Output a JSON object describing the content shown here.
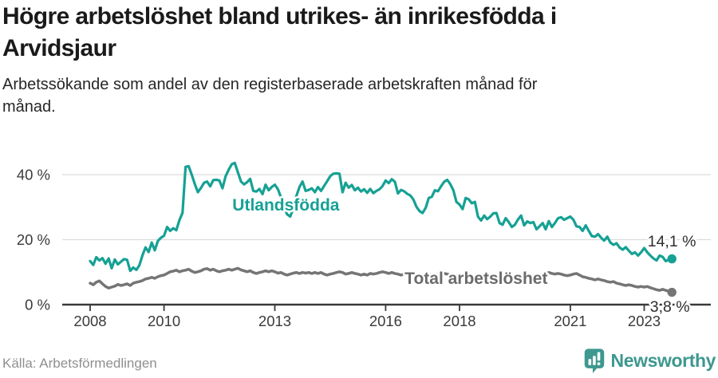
{
  "header": {
    "title_line1": "Högre arbetslöshet bland utrikes- än inrikesfödda i",
    "title_line2": "Arvidsjaur",
    "subtitle_line1": "Arbetssökande som andel av den registerbaserade arbetskraften månad för",
    "subtitle_line2": "månad."
  },
  "footer": {
    "source": "Källa: Arbetsförmedlingen",
    "brand": "Newsworthy"
  },
  "colors": {
    "accent_teal": "#16a194",
    "series_gray": "#757575",
    "axis_text": "#3a3a3a",
    "gridline": "#dcdcdc",
    "end_label_text": "#2d2d2d",
    "logo_teal": "#3d988f"
  },
  "chart_data": {
    "type": "line",
    "title": "Högre arbetslöshet bland utrikes- än inrikesfödda i Arvidsjaur",
    "subtitle": "Arbetssökande som andel av den registerbaserade arbetskraften månad för månad.",
    "x_unit": "year-month",
    "x_start_year": 2008.0,
    "x_step_years": 0.083333,
    "x_axis_tick_years": [
      2008,
      2010,
      2013,
      2016,
      2018,
      2021,
      2023
    ],
    "x_axis_tick_labels": [
      "2008",
      "2010",
      "2013",
      "2016",
      "2018",
      "2021",
      "2023"
    ],
    "y_axis_ticks": [
      {
        "value": 0,
        "label": "0 %"
      },
      {
        "value": 20,
        "label": "20 %"
      },
      {
        "value": 40,
        "label": "40 %"
      }
    ],
    "ylim": [
      0,
      46
    ],
    "xlim": [
      2007.8,
      2024.0
    ],
    "grid": "horizontal",
    "legend_position": "inline-labels-on-lines",
    "series": [
      {
        "name": "Utlandsfödda",
        "color": "#16a194",
        "label_anchor": {
          "year": 2013.3,
          "pct": 29.0
        },
        "end_label": "14,1 %",
        "end_value": 14.1,
        "values": [
          13.4,
          12.2,
          14.6,
          13.6,
          14.3,
          12.6,
          14.2,
          11.2,
          13.9,
          12.4,
          13.2,
          14.0,
          13.8,
          10.4,
          11.4,
          10.7,
          12.1,
          15.2,
          17.6,
          16.2,
          19.1,
          16.7,
          19.6,
          20.6,
          21.2,
          23.9,
          22.7,
          23.5,
          22.9,
          26.0,
          28.3,
          42.4,
          42.6,
          40.0,
          37.1,
          34.6,
          35.9,
          37.5,
          37.9,
          36.4,
          38.3,
          38.4,
          38.2,
          35.8,
          39.5,
          41.5,
          43.2,
          43.6,
          40.7,
          37.9,
          37.0,
          37.7,
          38.7,
          35.0,
          34.8,
          35.6,
          34.0,
          36.9,
          35.2,
          36.2,
          36.9,
          35.5,
          33.0,
          30.0,
          27.8,
          27.1,
          29.6,
          33.4,
          36.2,
          37.9,
          35.0,
          35.3,
          35.8,
          34.6,
          36.2,
          35.0,
          36.5,
          38.0,
          39.5,
          40.3,
          40.4,
          40.3,
          34.6,
          37.5,
          36.0,
          36.8,
          35.2,
          36.0,
          34.8,
          35.5,
          34.4,
          35.6,
          34.3,
          35.0,
          35.5,
          36.5,
          38.2,
          37.4,
          38.6,
          37.8,
          34.2,
          35.3,
          34.9,
          34.1,
          33.6,
          32.4,
          30.1,
          28.8,
          28.2,
          29.8,
          32.8,
          33.2,
          35.2,
          34.9,
          36.4,
          37.8,
          38.4,
          37.1,
          35.2,
          31.6,
          30.8,
          29.4,
          32.8,
          32.4,
          31.2,
          31.6,
          27.1,
          25.9,
          27.4,
          26.3,
          27.1,
          28.1,
          28.2,
          25.1,
          24.6,
          26.6,
          25.4,
          23.9,
          24.6,
          26.2,
          27.4,
          24.4,
          25.6,
          25.1,
          25.4,
          23.2,
          24.1,
          25.1,
          23.2,
          25.7,
          23.9,
          25.1,
          26.6,
          26.9,
          26.1,
          26.6,
          27.1,
          26.1,
          24.1,
          23.9,
          22.7,
          24.4,
          22.7,
          21.1,
          20.9,
          21.7,
          20.6,
          19.7,
          20.9,
          19.1,
          18.4,
          18.9,
          17.6,
          16.9,
          17.7,
          16.6,
          15.6,
          16.1,
          15.1,
          16.1,
          17.4,
          16.1,
          15.1,
          14.2,
          13.6,
          15.1,
          14.7,
          13.4,
          13.9,
          14.1
        ]
      },
      {
        "name": "Total arbetslöshet",
        "color": "#757575",
        "label_anchor": {
          "year": 2018.45,
          "pct": 6.4
        },
        "end_label": "3,8 %",
        "end_value": 3.8,
        "values": [
          6.6,
          6.1,
          6.9,
          7.3,
          6.4,
          5.6,
          5.1,
          5.4,
          5.7,
          6.2,
          5.9,
          6.1,
          6.4,
          5.9,
          6.6,
          6.9,
          7.1,
          7.4,
          7.9,
          8.1,
          8.4,
          8.1,
          8.6,
          8.9,
          9.1,
          9.6,
          10.1,
          10.3,
          10.6,
          10.1,
          10.4,
          10.6,
          10.9,
          10.3,
          9.9,
          10.1,
          10.4,
          10.9,
          11.1,
          10.6,
          10.9,
          10.4,
          10.1,
          10.4,
          10.6,
          10.9,
          10.6,
          10.9,
          11.2,
          10.7,
          10.4,
          10.1,
          10.4,
          9.9,
          9.6,
          9.9,
          10.1,
          10.4,
          10.1,
          10.4,
          10.1,
          9.7,
          9.9,
          9.4,
          9.1,
          9.4,
          9.7,
          9.9,
          9.6,
          9.9,
          9.7,
          9.9,
          9.6,
          9.9,
          9.6,
          9.9,
          9.4,
          9.1,
          9.4,
          9.6,
          9.9,
          10.1,
          9.9,
          9.4,
          9.6,
          9.9,
          9.6,
          9.4,
          9.1,
          9.4,
          9.1,
          9.6,
          9.4,
          9.6,
          9.9,
          10.1,
          9.9,
          9.6,
          9.9,
          9.6,
          9.4,
          9.1,
          9.4,
          9.1,
          8.9,
          9.1,
          8.9,
          9.1,
          8.9,
          9.1,
          9.4,
          9.1,
          9.4,
          9.1,
          9.4,
          9.6,
          9.4,
          9.1,
          8.9,
          9.1,
          8.9,
          8.6,
          8.9,
          9.1,
          8.9,
          8.6,
          8.4,
          8.6,
          8.9,
          8.6,
          8.4,
          8.6,
          8.4,
          8.1,
          8.4,
          8.6,
          8.4,
          8.1,
          8.4,
          8.6,
          8.9,
          8.6,
          8.4,
          8.6,
          8.9,
          8.6,
          8.9,
          9.4,
          9.6,
          9.9,
          9.6,
          9.4,
          9.6,
          9.4,
          9.1,
          8.9,
          9.1,
          9.4,
          9.6,
          9.1,
          8.6,
          8.4,
          8.1,
          7.9,
          7.6,
          7.9,
          7.6,
          7.4,
          7.1,
          6.9,
          7.1,
          6.6,
          6.4,
          6.1,
          5.9,
          6.1,
          5.9,
          5.6,
          5.4,
          5.6,
          5.4,
          5.6,
          5.2,
          4.9,
          4.6,
          4.4,
          4.7,
          4.4,
          4.1,
          3.8
        ]
      }
    ]
  }
}
